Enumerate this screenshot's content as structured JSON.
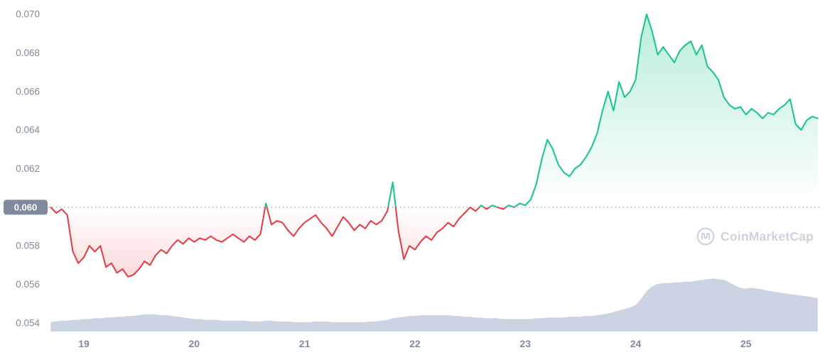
{
  "chart_data": {
    "type": "line",
    "title": "",
    "watermark_text": "CoinMarketCap",
    "baseline": 0.06,
    "baseline_label": "0.060",
    "y_ticks": [
      0.054,
      0.056,
      0.058,
      0.06,
      0.062,
      0.064,
      0.066,
      0.068,
      0.07
    ],
    "y_tick_labels": [
      "0.054",
      "0.056",
      "0.058",
      "0.060",
      "0.062",
      "0.064",
      "0.066",
      "0.068",
      "0.070"
    ],
    "x_ticks": [
      19,
      20,
      21,
      22,
      23,
      24,
      25
    ],
    "x_tick_labels": [
      "19",
      "20",
      "21",
      "22",
      "23",
      "24",
      "25"
    ],
    "x_range": [
      18.7,
      25.65
    ],
    "y_range": [
      0.054,
      0.07
    ],
    "grid": "dotted-baseline-only",
    "legend": "none",
    "colors": {
      "up": "#16c784",
      "down": "#ea3943",
      "baseline_badge": "#808a9d",
      "badge_text": "#ffffff",
      "axis_text": "#808a9d",
      "baseline_dots": "#a6b0c3",
      "volume": "#ccd3e2",
      "watermark": "#ccd3df",
      "background": "#ffffff"
    },
    "price_series": {
      "name": "price",
      "x_start": 18.7,
      "x_step": 0.05,
      "y": [
        0.06,
        0.0597,
        0.0599,
        0.0596,
        0.0577,
        0.0571,
        0.0574,
        0.058,
        0.0577,
        0.058,
        0.0569,
        0.0571,
        0.0566,
        0.0568,
        0.0564,
        0.0565,
        0.0568,
        0.0572,
        0.057,
        0.0575,
        0.0578,
        0.0576,
        0.058,
        0.0583,
        0.0581,
        0.0584,
        0.0582,
        0.0584,
        0.0583,
        0.0585,
        0.0583,
        0.0582,
        0.0584,
        0.0586,
        0.0584,
        0.0582,
        0.0585,
        0.0583,
        0.0586,
        0.0602,
        0.0591,
        0.0593,
        0.0592,
        0.0588,
        0.0585,
        0.0589,
        0.0592,
        0.0594,
        0.0596,
        0.0592,
        0.0589,
        0.0585,
        0.059,
        0.0595,
        0.0592,
        0.0588,
        0.0591,
        0.0589,
        0.0593,
        0.0591,
        0.0593,
        0.0598,
        0.0613,
        0.0588,
        0.0573,
        0.058,
        0.0578,
        0.0582,
        0.0585,
        0.0583,
        0.0587,
        0.0589,
        0.0592,
        0.059,
        0.0594,
        0.0597,
        0.06,
        0.0598,
        0.0601,
        0.0599,
        0.0601,
        0.06,
        0.0599,
        0.0601,
        0.06,
        0.0602,
        0.0601,
        0.0604,
        0.0612,
        0.0625,
        0.0635,
        0.063,
        0.0622,
        0.0618,
        0.0616,
        0.062,
        0.0622,
        0.0626,
        0.0631,
        0.0638,
        0.065,
        0.066,
        0.065,
        0.0665,
        0.0657,
        0.066,
        0.0666,
        0.0688,
        0.07,
        0.0691,
        0.0679,
        0.0683,
        0.0679,
        0.0675,
        0.0681,
        0.0684,
        0.0686,
        0.0679,
        0.0684,
        0.0673,
        0.067,
        0.0666,
        0.0657,
        0.0653,
        0.0651,
        0.0652,
        0.0648,
        0.0651,
        0.0649,
        0.0646,
        0.0649,
        0.0648,
        0.0651,
        0.0653,
        0.0656,
        0.0643,
        0.064,
        0.0645,
        0.0647,
        0.0646
      ]
    },
    "volume_series": {
      "name": "volume",
      "x_start": 18.7,
      "x_step": 0.05,
      "unit": "relative",
      "v": [
        12,
        13,
        14,
        14,
        15,
        15,
        16,
        16,
        17,
        17,
        18,
        18,
        19,
        19,
        20,
        20,
        21,
        22,
        22,
        22,
        21,
        21,
        20,
        19,
        18,
        17,
        16,
        16,
        15,
        15,
        15,
        14,
        14,
        14,
        14,
        14,
        13,
        13,
        13,
        14,
        14,
        13,
        13,
        13,
        12,
        12,
        12,
        12,
        13,
        13,
        13,
        12,
        12,
        12,
        12,
        12,
        12,
        12,
        13,
        13,
        14,
        15,
        17,
        18,
        19,
        20,
        20,
        21,
        21,
        21,
        21,
        21,
        21,
        20,
        20,
        19,
        19,
        18,
        18,
        17,
        17,
        17,
        16,
        16,
        16,
        16,
        16,
        16,
        17,
        17,
        18,
        18,
        18,
        18,
        19,
        19,
        19,
        20,
        20,
        21,
        22,
        23,
        25,
        27,
        29,
        31,
        34,
        42,
        52,
        58,
        61,
        62,
        62,
        63,
        63,
        64,
        64,
        65,
        66,
        67,
        68,
        67,
        66,
        63,
        59,
        56,
        55,
        56,
        55,
        54,
        52,
        51,
        50,
        49,
        48,
        47,
        46,
        45,
        44,
        43
      ]
    }
  }
}
